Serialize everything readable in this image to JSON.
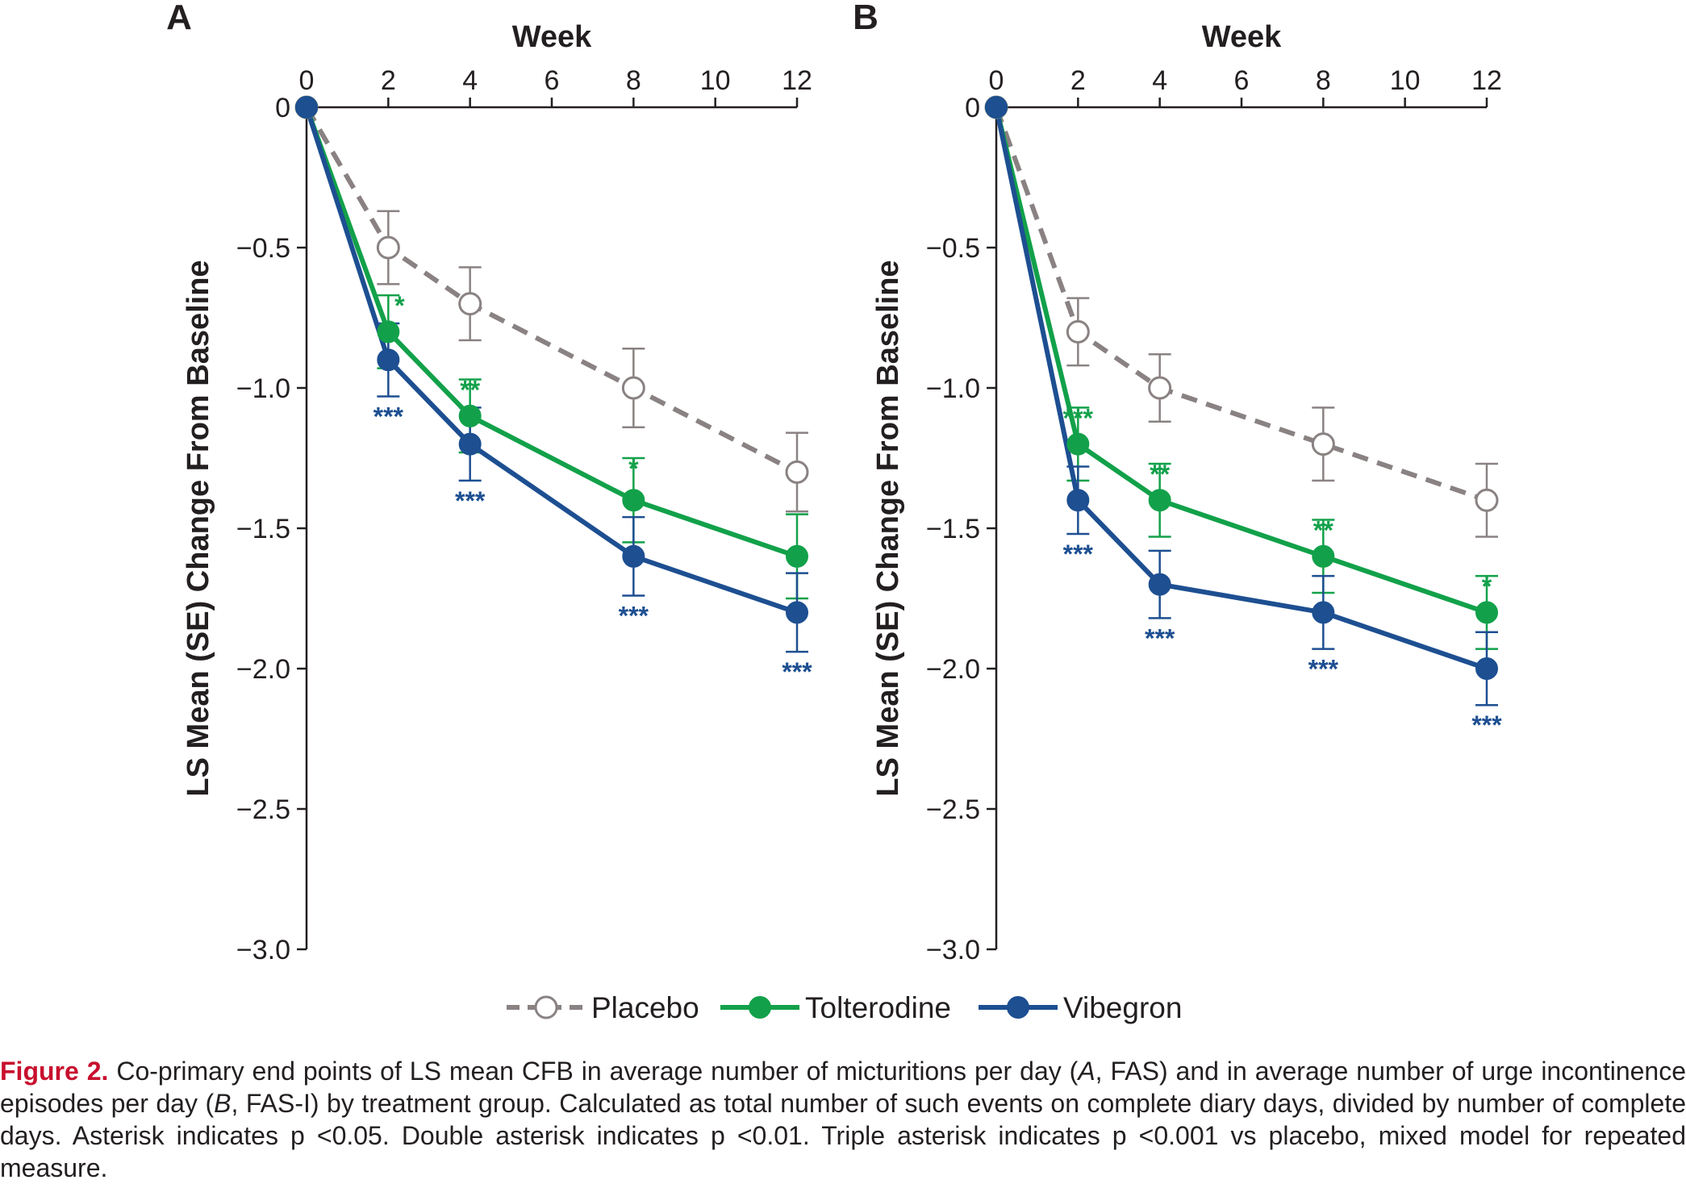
{
  "colors": {
    "placebo": "#8a8282",
    "tolterodine": "#12a14a",
    "vibegron": "#1d4f91",
    "axis": "#231f20",
    "caption_label": "#c8102e"
  },
  "legend": {
    "items": [
      {
        "label": "Placebo",
        "series": "placebo"
      },
      {
        "label": "Tolterodine",
        "series": "tolterodine"
      },
      {
        "label": "Vibegron",
        "series": "vibegron"
      }
    ]
  },
  "caption": {
    "label": "Figure 2.",
    "text_1": " Co-primary end points of LS mean CFB in average number of micturitions per day (",
    "italic_1": "A",
    "text_2": ", FAS) and in average number of urge incontinence episodes per day (",
    "italic_2": "B",
    "text_3": ", FAS-I) by treatment group. Calculated as total number of such events on complete diary days, divided by number of complete days. Asterisk indicates p <0.05. Double asterisk indicates p <0.01. Triple asterisk indicates p <0.001 vs placebo, mixed model for repeated measure."
  },
  "chart_data": [
    {
      "panel": "A",
      "type": "line",
      "xlabel": "Week",
      "ylabel": "LS Mean (SE) Change From Baseline",
      "x_ticks": [
        0,
        2,
        4,
        6,
        8,
        10,
        12
      ],
      "y_ticks": [
        0,
        -0.5,
        -1.0,
        -1.5,
        -2.0,
        -2.5,
        -3.0
      ],
      "y_tick_labels": [
        "0",
        "−0.5",
        "−1.0",
        "−1.5",
        "−2.0",
        "−2.5",
        "−3.0"
      ],
      "xlim": [
        0,
        12
      ],
      "ylim": [
        -3.0,
        0
      ],
      "x_axis_position": "top",
      "series": [
        {
          "key": "placebo",
          "name": "Placebo",
          "style": "dashed",
          "marker": "open-circle",
          "x": [
            0,
            2,
            4,
            8,
            12
          ],
          "y": [
            0,
            -0.5,
            -0.7,
            -1.0,
            -1.3
          ],
          "se": [
            0,
            0.13,
            0.13,
            0.14,
            0.14
          ],
          "sig": [
            "",
            "",
            "",
            "",
            ""
          ]
        },
        {
          "key": "tolterodine",
          "name": "Tolterodine",
          "style": "solid",
          "marker": "filled-circle",
          "x": [
            0,
            2,
            4,
            8,
            12
          ],
          "y": [
            0,
            -0.8,
            -1.1,
            -1.4,
            -1.6
          ],
          "se": [
            0,
            0.13,
            0.13,
            0.15,
            0.15
          ],
          "sig": [
            "",
            "*",
            "**",
            "*",
            ""
          ]
        },
        {
          "key": "vibegron",
          "name": "Vibegron",
          "style": "solid",
          "marker": "filled-circle",
          "x": [
            0,
            2,
            4,
            8,
            12
          ],
          "y": [
            0,
            -0.9,
            -1.2,
            -1.6,
            -1.8
          ],
          "se": [
            0,
            0.13,
            0.13,
            0.14,
            0.14
          ],
          "sig": [
            "",
            "***",
            "***",
            "***",
            "***"
          ]
        }
      ]
    },
    {
      "panel": "B",
      "type": "line",
      "xlabel": "Week",
      "ylabel": "LS Mean (SE) Change From Baseline",
      "x_ticks": [
        0,
        2,
        4,
        6,
        8,
        10,
        12
      ],
      "y_ticks": [
        0,
        -0.5,
        -1.0,
        -1.5,
        -2.0,
        -2.5,
        -3.0
      ],
      "y_tick_labels": [
        "0",
        "−0.5",
        "−1.0",
        "−1.5",
        "−2.0",
        "−2.5",
        "−3.0"
      ],
      "xlim": [
        0,
        12
      ],
      "ylim": [
        -3.0,
        0
      ],
      "x_axis_position": "top",
      "series": [
        {
          "key": "placebo",
          "name": "Placebo",
          "style": "dashed",
          "marker": "open-circle",
          "x": [
            0,
            2,
            4,
            8,
            12
          ],
          "y": [
            0,
            -0.8,
            -1.0,
            -1.2,
            -1.4
          ],
          "se": [
            0,
            0.12,
            0.12,
            0.13,
            0.13
          ],
          "sig": [
            "",
            "",
            "",
            "",
            ""
          ]
        },
        {
          "key": "tolterodine",
          "name": "Tolterodine",
          "style": "solid",
          "marker": "filled-circle",
          "x": [
            0,
            2,
            4,
            8,
            12
          ],
          "y": [
            0,
            -1.2,
            -1.4,
            -1.6,
            -1.8
          ],
          "se": [
            0,
            0.13,
            0.13,
            0.13,
            0.13
          ],
          "sig": [
            "",
            "***",
            "**",
            "**",
            "*"
          ]
        },
        {
          "key": "vibegron",
          "name": "Vibegron",
          "style": "solid",
          "marker": "filled-circle",
          "x": [
            0,
            2,
            4,
            8,
            12
          ],
          "y": [
            0,
            -1.4,
            -1.7,
            -1.8,
            -2.0
          ],
          "se": [
            0,
            0.12,
            0.12,
            0.13,
            0.13
          ],
          "sig": [
            "",
            "***",
            "***",
            "***",
            "***"
          ]
        }
      ]
    }
  ]
}
